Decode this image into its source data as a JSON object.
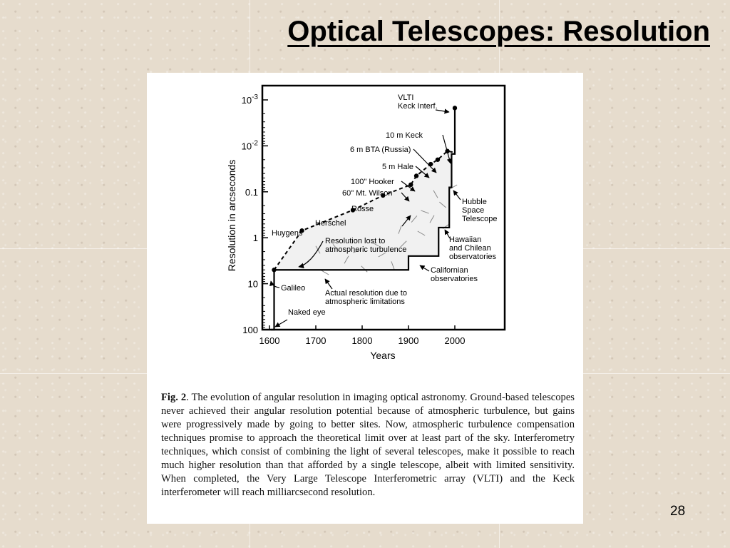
{
  "slide": {
    "title": "Optical Telescopes: Resolution",
    "page_number": "28"
  },
  "caption": {
    "label": "Fig. 2",
    "text": ". The evolution of angular resolution in imaging optical astronomy. Ground-based telescopes never achieved their angular resolution potential because of atmospheric turbulence, but gains were progressively made by going to better sites. Now, atmospheric turbulence compensation techniques promise to approach the theoretical limit over at least part of the sky. Interferometry techniques, which consist of combining the light of several telescopes, make it possible to reach much higher resolution than that afforded by a single telescope, albeit with limited sensitivity. When completed, the Very Large Telescope Interferometric array (VLTI) and the Keck interferometer will reach milliarcsecond resolution."
  },
  "chart_data": {
    "type": "line",
    "xlabel": "Years",
    "ylabel": "Resolution in arcseconds",
    "x_ticks": [
      "1600",
      "1700",
      "1800",
      "1900",
      "2000"
    ],
    "y_ticks": [
      "10-3",
      "10-2",
      "0.1",
      "1",
      "10",
      "100"
    ],
    "xlim": [
      1600,
      2005
    ],
    "ylim_log10": [
      2,
      -3
    ],
    "y_scale": "log-reversed",
    "grid": false,
    "series": [
      {
        "name": "",
        "style": "dashed",
        "points": [
          {
            "x": 1610,
            "y": 5
          },
          {
            "x": 1670,
            "y": 0.7
          },
          {
            "x": 1780,
            "y": 0.25
          },
          {
            "x": 1845,
            "y": 0.12
          },
          {
            "x": 1905,
            "y": 0.07
          },
          {
            "x": 1917,
            "y": 0.045
          },
          {
            "x": 1948,
            "y": 0.025
          },
          {
            "x": 1963,
            "y": 0.02
          },
          {
            "x": 1984,
            "y": 0.013
          },
          {
            "x": 2000,
            "y": 0.014
          }
        ]
      },
      {
        "name": "",
        "style": "solid",
        "points": [
          {
            "x": 1603,
            "y": 100
          },
          {
            "x": 1610,
            "y": 100
          },
          {
            "x": 1610,
            "y": 5
          },
          {
            "x": 1900,
            "y": 5
          },
          {
            "x": 1900,
            "y": 2.5
          },
          {
            "x": 1965,
            "y": 2.5
          },
          {
            "x": 1965,
            "y": 0.6
          },
          {
            "x": 1988,
            "y": 0.6
          },
          {
            "x": 1988,
            "y": 0.08
          },
          {
            "x": 1993,
            "y": 0.08
          },
          {
            "x": 1993,
            "y": 0.015
          },
          {
            "x": 2000,
            "y": 0.015
          },
          {
            "x": 2000,
            "y": 0.0015
          }
        ]
      }
    ],
    "markers": [
      {
        "x": 1610,
        "y": 5
      },
      {
        "x": 1670,
        "y": 0.7
      },
      {
        "x": 1780,
        "y": 0.25
      },
      {
        "x": 1845,
        "y": 0.12
      },
      {
        "x": 1905,
        "y": 0.07
      },
      {
        "x": 1917,
        "y": 0.045
      },
      {
        "x": 1948,
        "y": 0.025
      },
      {
        "x": 1963,
        "y": 0.02
      },
      {
        "x": 1984,
        "y": 0.013
      },
      {
        "x": 2000,
        "y": 0.0015
      }
    ],
    "annotations": [
      {
        "lines": [
          "VLTI",
          "Keck Interf."
        ]
      },
      {
        "lines": [
          "10 m Keck"
        ]
      },
      {
        "lines": [
          "6 m BTA (Russia)"
        ]
      },
      {
        "lines": [
          "5 m Hale"
        ]
      },
      {
        "lines": [
          "100\" Hooker"
        ]
      },
      {
        "lines": [
          "60\" Mt. Wilson"
        ]
      },
      {
        "lines": [
          "Rosse"
        ]
      },
      {
        "lines": [
          "Herschel"
        ]
      },
      {
        "lines": [
          "Huygens"
        ]
      },
      {
        "lines": [
          "Resolution lost to",
          "atmospheric turbulence"
        ]
      },
      {
        "lines": [
          "Hubble",
          "Space",
          "Telescope"
        ]
      },
      {
        "lines": [
          "Hawaiian",
          "and Chilean",
          "observatories"
        ]
      },
      {
        "lines": [
          "Californian",
          "observatories"
        ]
      },
      {
        "lines": [
          "Galileo"
        ]
      },
      {
        "lines": [
          "Actual resolution due to",
          "atmospheric limitations"
        ]
      },
      {
        "lines": [
          "Naked eye"
        ]
      }
    ]
  }
}
